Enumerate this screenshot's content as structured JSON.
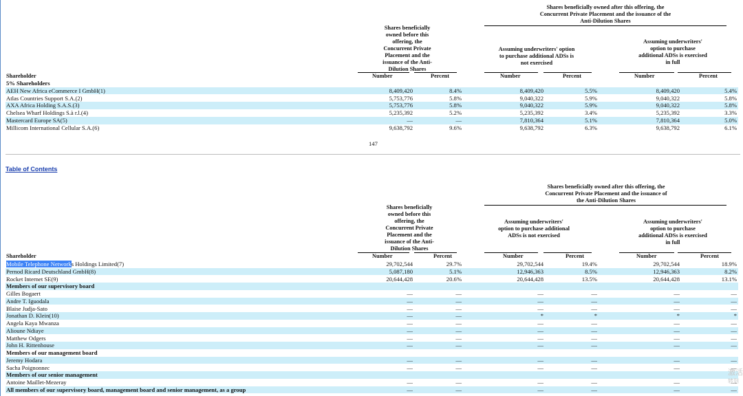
{
  "page_number": "147",
  "toc_link": "Table of Contents",
  "headers": {
    "after_group": "Shares beneficially owned after this offering, the Concurrent Private Placement and the issuance of the Anti-Dilution Shares",
    "before": "Shares beneficially owned before this offering, the Concurrent Private Placement and the issuance of the Anti-Dilution Shares",
    "not_exercised": "Assuming underwriters' option to purchase additional ADSs is not exercised",
    "exercised": "Assuming underwriters' option to purchase additional ADSs is exercised in full",
    "shareholder": "Shareholder",
    "number": "Number",
    "percent": "Percent"
  },
  "table1": [
    {
      "label": "5% Shareholders",
      "bold": true
    },
    {
      "label": "AEH New Africa eCommerce I GmbH(1)",
      "nb": "8,409,420",
      "pb": "8.4%",
      "na": "8,409,420",
      "pa": "5.5%",
      "nf": "8,409,420",
      "pf": "5.4%"
    },
    {
      "label": "Atlas Countries Support S.A.(2)",
      "nb": "5,753,776",
      "pb": "5.8%",
      "na": "9,040,322",
      "pa": "5.9%",
      "nf": "9,040,322",
      "pf": "5.8%"
    },
    {
      "label": "AXA Africa Holding S.A.S.(3)",
      "nb": "5,753,776",
      "pb": "5.8%",
      "na": "9,040,322",
      "pa": "5.9%",
      "nf": "9,040,322",
      "pf": "5.8%"
    },
    {
      "label": "Chelsea Wharf Holdings S.à r.l.(4)",
      "nb": "5,235,392",
      "pb": "5.2%",
      "na": "5,235,392",
      "pa": "3.4%",
      "nf": "5,235,392",
      "pf": "3.3%"
    },
    {
      "label": "Mastercard Europe SA(5)",
      "nb": "—",
      "pb": "—",
      "na": "7,810,364",
      "pa": "5.1%",
      "nf": "7,810,364",
      "pf": "5.0%"
    },
    {
      "label": "Millicom International Cellular S.A.(6)",
      "nb": "9,638,792",
      "pb": "9.6%",
      "na": "9,638,792",
      "pa": "6.3%",
      "nf": "9,638,792",
      "pf": "6.1%"
    }
  ],
  "highlight_part": "Mobile Telephone Network",
  "highlight_rest": "s Holdings Limited(7)",
  "table2": [
    {
      "label": "",
      "nb": "29,702,544",
      "pb": "29.7%",
      "na": "29,702,544",
      "pa": "19.4%",
      "nf": "29,702,544",
      "pf": "18.9%"
    },
    {
      "label": "Pernod Ricard Deutschland GmbH(8)",
      "nb": "5,087,180",
      "pb": "5.1%",
      "na": "12,946,363",
      "pa": "8.5%",
      "nf": "12,946,363",
      "pf": "8.2%"
    },
    {
      "label": "Rocket Internet SE(9)",
      "nb": "20,644,428",
      "pb": "20.6%",
      "na": "20,644,428",
      "pa": "13.5%",
      "nf": "20,644,428",
      "pf": "13.1%"
    },
    {
      "label": "Members of our supervisory board",
      "bold": true
    },
    {
      "label": "Gilles Bogaert",
      "nb": "—",
      "pb": "—",
      "na": "—",
      "pa": "—",
      "nf": "—",
      "pf": "—"
    },
    {
      "label": "Andre T. Iguodala",
      "nb": "—",
      "pb": "—",
      "na": "—",
      "pa": "—",
      "nf": "—",
      "pf": "—"
    },
    {
      "label": "Blaise Judja-Sato",
      "nb": "—",
      "pb": "—",
      "na": "—",
      "pa": "—",
      "nf": "—",
      "pf": "—"
    },
    {
      "label": "Jonathan D. Klein(10)",
      "nb": "—",
      "pb": "—",
      "na": "*",
      "pa": "*",
      "nf": "*",
      "pf": "*"
    },
    {
      "label": "Angela Kaya Mwanza",
      "nb": "—",
      "pb": "—",
      "na": "—",
      "pa": "—",
      "nf": "—",
      "pf": "—"
    },
    {
      "label": "Alioune Ndiaye",
      "nb": "—",
      "pb": "—",
      "na": "—",
      "pa": "—",
      "nf": "—",
      "pf": "—"
    },
    {
      "label": "Matthew Odgers",
      "nb": "—",
      "pb": "—",
      "na": "—",
      "pa": "—",
      "nf": "—",
      "pf": "—"
    },
    {
      "label": "John H. Rittenhouse",
      "nb": "—",
      "pb": "—",
      "na": "—",
      "pa": "—",
      "nf": "—",
      "pf": "—"
    },
    {
      "label": "Members of our management board",
      "bold": true
    },
    {
      "label": "Jeremy Hodara",
      "nb": "—",
      "pb": "—",
      "na": "—",
      "pa": "—",
      "nf": "—",
      "pf": "—"
    },
    {
      "label": "Sacha Poignonnec",
      "nb": "—",
      "pb": "—",
      "na": "—",
      "pa": "—",
      "nf": "—",
      "pf": "—"
    },
    {
      "label": "Members of our senior management",
      "bold": true
    },
    {
      "label": "Antoine Maillet-Mezeray",
      "nb": "—",
      "pb": "—",
      "na": "—",
      "pa": "—",
      "nf": "—",
      "pf": "—"
    },
    {
      "label": "All members of our supervisory board, management board and senior management, as a group",
      "bold": true,
      "nb": "—",
      "pb": "—",
      "na": "—",
      "pa": "—",
      "nf": "—",
      "pf": "—"
    }
  ],
  "watermark": [
    "激活",
    "转到"
  ]
}
